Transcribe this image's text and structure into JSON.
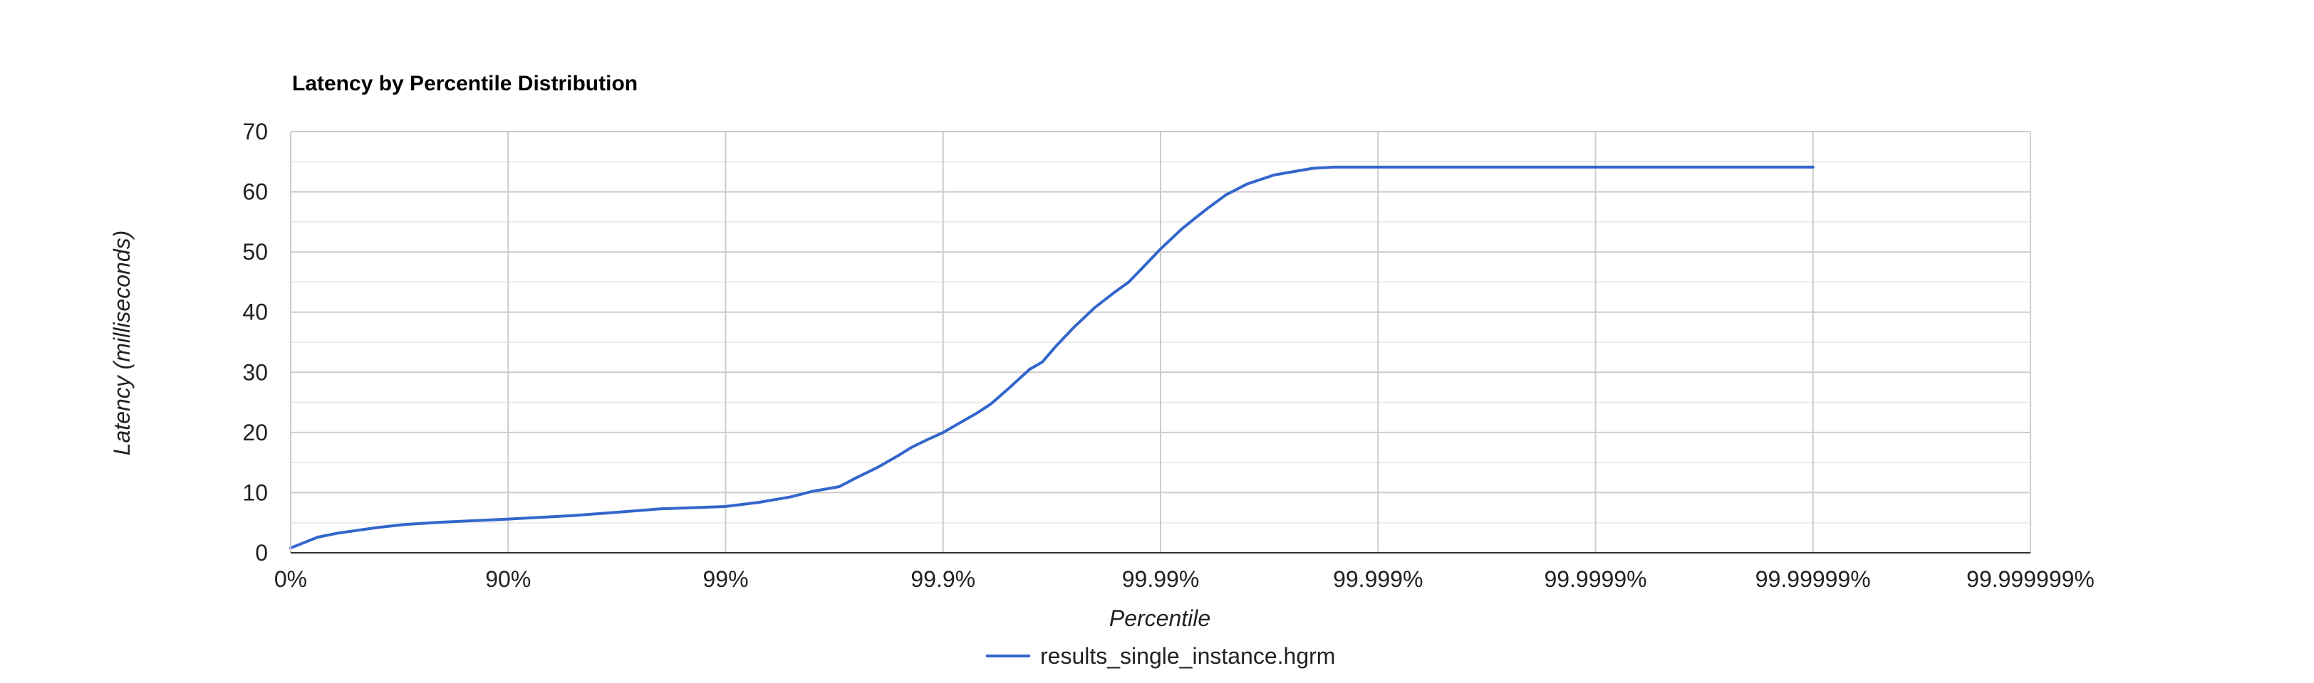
{
  "chart_data": {
    "type": "line",
    "title": "Latency by Percentile Distribution",
    "xlabel": "Percentile",
    "ylabel": "Latency (milliseconds)",
    "x_scale": "log-percentile (1/(1-p))",
    "x_ticks": [
      "0%",
      "90%",
      "99%",
      "99.9%",
      "99.99%",
      "99.999%",
      "99.9999%",
      "99.99999%",
      "99.999999%"
    ],
    "ylim": [
      0,
      70
    ],
    "y_ticks": [
      0,
      10,
      20,
      30,
      40,
      50,
      60,
      70
    ],
    "grid": true,
    "legend_position": "bottom",
    "series": [
      {
        "name": "results_single_instance.hgrm",
        "color": "#3366cc",
        "points": [
          [
            "0%",
            0.8
          ],
          [
            "25%",
            2.6
          ],
          [
            "40%",
            3.3
          ],
          [
            "50%",
            3.7
          ],
          [
            "60%",
            4.2
          ],
          [
            "70%",
            4.7
          ],
          [
            "80%",
            5.1
          ],
          [
            "90%",
            5.6
          ],
          [
            "95%",
            6.2
          ],
          [
            "97%",
            6.8
          ],
          [
            "98%",
            7.3
          ],
          [
            "99%",
            7.7
          ],
          [
            "99.3%",
            8.4
          ],
          [
            "99.5%",
            9.3
          ],
          [
            "99.6%",
            10.2
          ],
          [
            "99.7%",
            11.0
          ],
          [
            "99.75%",
            12.5
          ],
          [
            "99.8%",
            14.2
          ],
          [
            "99.84%",
            16.2
          ],
          [
            "99.86%",
            17.5
          ],
          [
            "99.88%",
            18.7
          ],
          [
            "99.9%",
            20.0
          ],
          [
            "99.92%",
            22.0
          ],
          [
            "99.93%",
            23.2
          ],
          [
            "99.94%",
            24.8
          ],
          [
            "99.95%",
            27.3
          ],
          [
            "99.96%",
            30.5
          ],
          [
            "99.965%",
            31.7
          ],
          [
            "99.97%",
            34.5
          ],
          [
            "99.975%",
            37.5
          ],
          [
            "99.98%",
            40.8
          ],
          [
            "99.984%",
            43.5
          ],
          [
            "99.986%",
            45.0
          ],
          [
            "99.988%",
            47.5
          ],
          [
            "99.99%",
            50.5
          ],
          [
            "99.992%",
            53.8
          ],
          [
            "99.993%",
            55.5
          ],
          [
            "99.994%",
            57.4
          ],
          [
            "99.995%",
            59.5
          ],
          [
            "99.996%",
            61.3
          ],
          [
            "99.997%",
            62.8
          ],
          [
            "99.998%",
            63.9
          ],
          [
            "99.9984%",
            64.1
          ],
          [
            "99.999%",
            64.1
          ],
          [
            "99.9999%",
            64.1
          ],
          [
            "99.99999%",
            64.1
          ]
        ]
      }
    ]
  }
}
